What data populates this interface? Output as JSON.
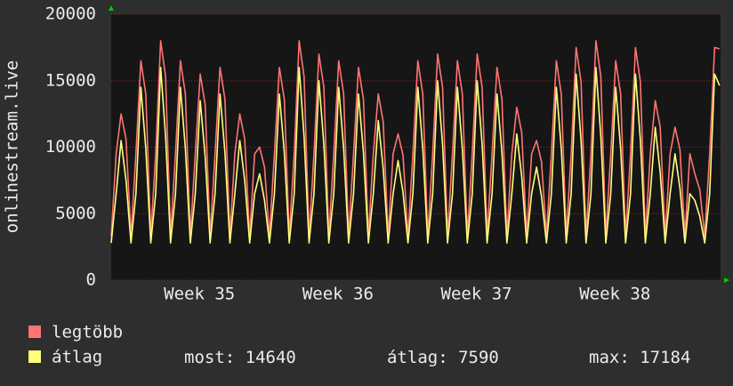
{
  "chart_data": {
    "type": "line",
    "y_label": "onlinestream.live",
    "x": [
      0,
      0.25,
      0.5,
      0.75,
      1,
      1.25,
      1.5,
      1.75,
      2,
      2.25,
      2.5,
      2.75,
      3,
      3.25,
      3.5,
      3.75,
      4,
      4.25,
      4.5,
      4.75,
      5,
      5.25,
      5.5,
      5.75,
      6,
      6.25,
      6.5,
      6.75,
      7,
      7.25,
      7.5,
      7.75,
      8,
      8.25,
      8.5,
      8.75,
      9,
      9.25,
      9.5,
      9.75,
      10,
      10.25,
      10.5,
      10.75,
      11,
      11.25,
      11.5,
      11.75,
      12,
      12.25,
      12.5,
      12.75,
      13,
      13.25,
      13.5,
      13.75,
      14,
      14.25,
      14.5,
      14.75,
      15,
      15.25,
      15.5,
      15.75,
      16,
      16.25,
      16.5,
      16.75,
      17,
      17.25,
      17.5,
      17.75,
      18,
      18.25,
      18.5,
      18.75,
      19,
      19.25,
      19.5,
      19.75,
      20,
      20.25,
      20.5,
      20.75,
      21,
      21.25,
      21.5,
      21.75,
      22,
      22.25,
      22.5,
      22.75,
      23,
      23.25,
      23.5,
      23.75,
      24,
      24.25,
      24.5,
      24.75,
      25,
      25.25,
      25.5,
      25.75,
      26,
      26.25,
      26.5,
      26.75,
      27,
      27.25,
      27.5,
      27.75,
      28,
      28.25,
      28.5,
      28.75,
      29,
      29.25,
      29.5,
      29.75,
      30,
      30.25,
      30.5,
      30.75
    ],
    "xlim": [
      0,
      30.8
    ],
    "xticks": [
      {
        "value": 4.46,
        "label": "Week 35"
      },
      {
        "value": 11.46,
        "label": "Week 36"
      },
      {
        "value": 18.46,
        "label": "Week 37"
      },
      {
        "value": 25.46,
        "label": "Week 38"
      }
    ],
    "ylim": [
      0,
      20000
    ],
    "yticks": [
      0,
      5000,
      10000,
      15000,
      20000
    ],
    "grid": true,
    "series": [
      {
        "name": "legtöbb",
        "color": "#ff7474",
        "values": [
          3300,
          9500,
          12500,
          10600,
          3300,
          9500,
          16500,
          14000,
          3300,
          9500,
          18000,
          15300,
          3300,
          9500,
          16500,
          14000,
          3300,
          9500,
          15500,
          13200,
          3300,
          9500,
          16000,
          13600,
          3300,
          9500,
          12500,
          10600,
          3300,
          9500,
          10000,
          8500,
          3300,
          9500,
          16000,
          13600,
          3300,
          9500,
          18000,
          15300,
          3300,
          9500,
          17000,
          14500,
          3300,
          9500,
          16500,
          14000,
          3300,
          9500,
          16000,
          13600,
          3300,
          9500,
          14000,
          11900,
          3300,
          9500,
          11000,
          9400,
          3300,
          9500,
          16500,
          14000,
          3300,
          9500,
          17000,
          14500,
          3300,
          9500,
          16500,
          14000,
          3300,
          9500,
          17000,
          14500,
          3300,
          9500,
          16000,
          13600,
          3300,
          9500,
          13000,
          11100,
          3300,
          9500,
          10500,
          8900,
          3300,
          9500,
          16500,
          14000,
          3300,
          9500,
          17500,
          14900,
          3300,
          9500,
          18000,
          15300,
          3300,
          9500,
          16500,
          14000,
          3300,
          9500,
          17500,
          14900,
          3300,
          9500,
          13500,
          11500,
          3300,
          9500,
          11500,
          9800,
          3300,
          9500,
          8000,
          6800,
          3300,
          9500,
          17500,
          17400
        ]
      },
      {
        "name": "átlag",
        "color": "#ffff7a",
        "values": [
          2800,
          6500,
          10500,
          7500,
          2800,
          6500,
          14500,
          9900,
          2800,
          6500,
          16000,
          10800,
          2800,
          6500,
          14500,
          9900,
          2800,
          6500,
          13500,
          9300,
          2800,
          6500,
          14000,
          9600,
          2800,
          6500,
          10500,
          7500,
          2800,
          6500,
          8000,
          6000,
          2800,
          6500,
          14000,
          9600,
          2800,
          6500,
          16000,
          10800,
          2800,
          6500,
          15000,
          10200,
          2800,
          6500,
          14500,
          9900,
          2800,
          6500,
          14000,
          9600,
          2800,
          6500,
          12000,
          8400,
          2800,
          6500,
          9000,
          6600,
          2800,
          6500,
          14500,
          9900,
          2800,
          6500,
          15000,
          10200,
          2800,
          6500,
          14500,
          9900,
          2800,
          6500,
          15000,
          10200,
          2800,
          6500,
          14000,
          9600,
          2800,
          6500,
          11000,
          7800,
          2800,
          6500,
          8500,
          6300,
          2800,
          6500,
          14500,
          9900,
          2800,
          6500,
          15500,
          10500,
          2800,
          6500,
          16000,
          10800,
          2800,
          6500,
          14500,
          9900,
          2800,
          6500,
          15500,
          10500,
          2800,
          6500,
          11500,
          8100,
          2800,
          6500,
          9500,
          6900,
          2800,
          6500,
          6000,
          4800,
          2800,
          6500,
          15500,
          14640
        ]
      }
    ],
    "stats": [
      {
        "label": "most:",
        "value": 14640
      },
      {
        "label": "átlag:",
        "value": 7590
      },
      {
        "label": "max:",
        "value": 17184
      }
    ]
  }
}
